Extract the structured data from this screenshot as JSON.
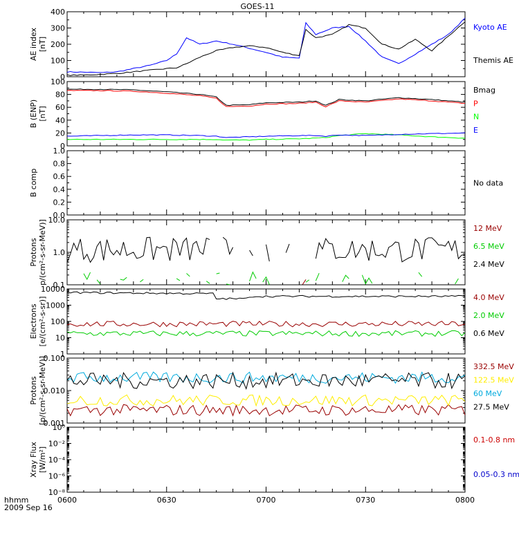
{
  "title": "GOES-11",
  "time_axis": {
    "ticks": [
      "0600",
      "0630",
      "0700",
      "0730",
      "0800"
    ],
    "label_line1": "hhmm",
    "label_line2": "2009 Sep 16"
  },
  "chart_data": [
    {
      "type": "line",
      "panel": "ae",
      "ylabel_line1": "AE index",
      "ylabel_line2": "[nT]",
      "ylim": [
        0,
        400
      ],
      "yticks": [
        "0",
        "100",
        "200",
        "300",
        "400"
      ],
      "x_minutes": [
        0,
        5,
        10,
        15,
        20,
        25,
        30,
        33,
        36,
        40,
        45,
        50,
        55,
        60,
        65,
        70,
        72,
        75,
        80,
        85,
        90,
        95,
        100,
        105,
        110,
        115,
        120
      ],
      "series": [
        {
          "name": "Kyoto AE",
          "color": "#0000ff",
          "values": [
            30,
            28,
            25,
            30,
            50,
            70,
            100,
            140,
            240,
            200,
            220,
            200,
            175,
            150,
            120,
            115,
            330,
            260,
            300,
            310,
            220,
            120,
            80,
            140,
            200,
            260,
            360
          ]
        },
        {
          "name": "Themis AE",
          "color": "#000000",
          "values": [
            10,
            10,
            15,
            20,
            30,
            40,
            50,
            55,
            80,
            120,
            160,
            180,
            190,
            180,
            150,
            130,
            290,
            240,
            260,
            320,
            300,
            200,
            170,
            230,
            160,
            250,
            340
          ]
        }
      ]
    },
    {
      "type": "line",
      "panel": "b_enp",
      "ylabel_line1": "B (ENP)",
      "ylabel_line2": "[nT]",
      "ylim": [
        0,
        100
      ],
      "yticks": [
        "0",
        "20",
        "40",
        "60",
        "80",
        "100"
      ],
      "x_minutes": [
        0,
        10,
        20,
        30,
        40,
        45,
        48,
        55,
        60,
        70,
        75,
        78,
        82,
        90,
        100,
        110,
        120
      ],
      "series": [
        {
          "name": "Bmag",
          "color": "#000000",
          "values": [
            88,
            88,
            87,
            84,
            80,
            76,
            63,
            64,
            67,
            68,
            70,
            63,
            72,
            70,
            75,
            72,
            68
          ]
        },
        {
          "name": "P",
          "color": "#ff0000",
          "values": [
            86,
            86,
            85,
            82,
            78,
            74,
            61,
            62,
            65,
            66,
            68,
            61,
            70,
            68,
            73,
            70,
            66
          ]
        },
        {
          "name": "N",
          "color": "#00ff00",
          "values": [
            10,
            10,
            10,
            10,
            10,
            10,
            9,
            9,
            10,
            11,
            12,
            13,
            16,
            19,
            17,
            14,
            12
          ]
        },
        {
          "name": "E",
          "color": "#0000ff",
          "values": [
            15,
            16,
            17,
            17,
            16,
            15,
            13,
            14,
            15,
            16,
            16,
            15,
            17,
            16,
            18,
            19,
            20
          ]
        }
      ]
    },
    {
      "type": "line",
      "panel": "b_comp",
      "ylabel_line1": "B comp",
      "ylim": [
        0,
        1
      ],
      "yticks": [
        "0.0",
        "0.2",
        "0.4",
        "0.6",
        "0.8",
        "1.0"
      ],
      "no_data_text": "No data",
      "series": []
    },
    {
      "type": "line",
      "panel": "protons_low",
      "ylabel_line1": "Protons",
      "ylabel_line2": "p/(cm²-s-sr-MeV)]",
      "log": true,
      "ylim": [
        0.1,
        10
      ],
      "yticks": [
        "0.1",
        "1.0",
        "10.0"
      ],
      "series": [
        {
          "name": "12 MeV",
          "color": "#990000",
          "values_generated": true
        },
        {
          "name": "6.5 MeV",
          "color": "#00cc00",
          "values_generated": true
        },
        {
          "name": "2.4 MeV",
          "color": "#000000",
          "values_generated": true
        }
      ]
    },
    {
      "type": "line",
      "panel": "electrons",
      "ylabel_line1": "Electrons",
      "ylabel_line2": "[e/(cm²-s-sr)]",
      "log": true,
      "ylim": [
        1,
        10000
      ],
      "yticks": [
        "1",
        "10",
        "100",
        "1000",
        "10000"
      ],
      "series": [
        {
          "name": "4.0 MeV",
          "color": "#990000",
          "level": 70
        },
        {
          "name": "2.0 MeV",
          "color": "#00cc00",
          "level": 18
        },
        {
          "name": "0.6 MeV",
          "color": "#000000",
          "level": 4000
        }
      ]
    },
    {
      "type": "line",
      "panel": "protons_high",
      "ylabel_line1": "Protons",
      "ylabel_line2": "[p/(cm²-s-sr-MeV)]",
      "log": true,
      "ylim": [
        0.001,
        0.1
      ],
      "yticks": [
        "0.001",
        "0.010",
        "0.100"
      ],
      "series": [
        {
          "name": "332.5 MeV",
          "color": "#990000",
          "level": 0.0025
        },
        {
          "name": "122.5 MeV",
          "color": "#ffee00",
          "level": 0.005
        },
        {
          "name": "60 MeV",
          "color": "#00aadd",
          "level": 0.025
        },
        {
          "name": "27.5 MeV",
          "color": "#000000",
          "level": 0.02
        }
      ]
    },
    {
      "type": "line",
      "panel": "xray",
      "ylabel_line1": "Xray  Flux",
      "ylabel_line2": "[W/m²]",
      "log": true,
      "ylim": [
        1e-08,
        1
      ],
      "yticks": [
        "10⁻⁸",
        "10⁻⁶",
        "10⁻⁴",
        "10⁻²",
        "10⁰"
      ],
      "series": [
        {
          "name": "0.1-0.8 nm",
          "color": "#cc0000"
        },
        {
          "name": "0.05-0.3 nm",
          "color": "#0000cc"
        }
      ]
    }
  ]
}
